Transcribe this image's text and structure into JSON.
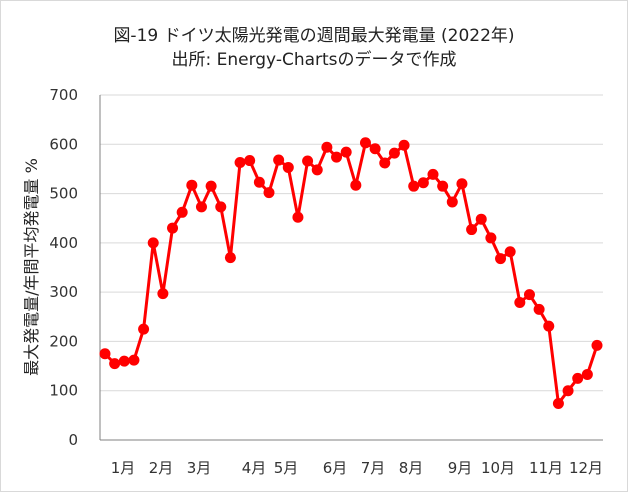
{
  "chart_data": {
    "type": "line",
    "title": "図-19 ドイツ太陽光発電の週間最大発電量 (2022年)",
    "subtitle": "出所: Energy-Chartsのデータで作成",
    "xlabel": "",
    "ylabel": "最大発電量/年間平均発電量 %",
    "ylim": [
      0,
      700
    ],
    "yticks": [
      0,
      100,
      200,
      300,
      400,
      500,
      600,
      700
    ],
    "grid": true,
    "x_tick_labels": [
      "1月",
      "2月",
      "3月",
      "4月",
      "5月",
      "6月",
      "7月",
      "8月",
      "9月",
      "10月",
      "11月",
      "12月"
    ],
    "series": [
      {
        "name": "週間最大発電量",
        "color": "#ff0000",
        "values": [
          175,
          155,
          160,
          162,
          225,
          400,
          297,
          430,
          462,
          517,
          473,
          515,
          473,
          370,
          563,
          567,
          523,
          502,
          568,
          553,
          452,
          566,
          548,
          594,
          574,
          584,
          517,
          603,
          591,
          562,
          582,
          598,
          515,
          522,
          539,
          515,
          483,
          520,
          427,
          448,
          410,
          368,
          382,
          279,
          295,
          265,
          231,
          74,
          100,
          125,
          133,
          192
        ]
      }
    ]
  }
}
